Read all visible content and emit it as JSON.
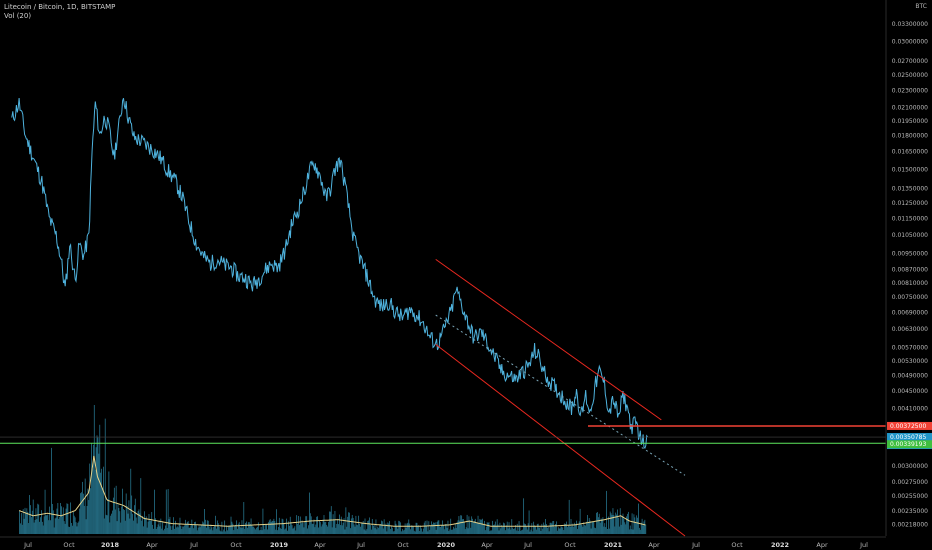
{
  "header": {
    "symbol_line": "Litecoin / Bitcoin, 1D, BITSTAMP",
    "indicator_line": "Vol (20)"
  },
  "currency_label": "BTC",
  "price_tags": {
    "resistance": "0.00372500",
    "last": "0.00350785",
    "countdown": "10:18:40",
    "support": "0.00339193"
  },
  "colors": {
    "price": "#4fb3de",
    "volume": "#2a7f9a",
    "volume_ma": "#e6d28a",
    "channel": "#e8281f",
    "resistance": "#f24236",
    "support": "#5ee85e",
    "last": "#2196c8",
    "midline": "#7aa6b8"
  },
  "chart_data": {
    "type": "line",
    "title": "Litecoin / Bitcoin, 1D, BITSTAMP",
    "ylabel": "BTC",
    "y_ticks": [
      "0.03600000",
      "0.03300000",
      "0.03000000",
      "0.02700000",
      "0.02500000",
      "0.02300000",
      "0.02100000",
      "0.01950000",
      "0.01800000",
      "0.01650000",
      "0.01500000",
      "0.01350000",
      "0.01250000",
      "0.01150000",
      "0.01050000",
      "0.00950000",
      "0.00870000",
      "0.00810000",
      "0.00750000",
      "0.00690000",
      "0.00630000",
      "0.00570000",
      "0.00530000",
      "0.00490000",
      "0.00450000",
      "0.00410000",
      "0.00300000",
      "0.00275000",
      "0.00255000",
      "0.00235000",
      "0.00218000"
    ],
    "x_ticks": [
      {
        "label": "Jul",
        "bold": false
      },
      {
        "label": "Oct",
        "bold": false
      },
      {
        "label": "2018",
        "bold": true
      },
      {
        "label": "Apr",
        "bold": false
      },
      {
        "label": "Jul",
        "bold": false
      },
      {
        "label": "Oct",
        "bold": false
      },
      {
        "label": "2019",
        "bold": true
      },
      {
        "label": "Apr",
        "bold": false
      },
      {
        "label": "Jul",
        "bold": false
      },
      {
        "label": "Oct",
        "bold": false
      },
      {
        "label": "2020",
        "bold": true
      },
      {
        "label": "Apr",
        "bold": false
      },
      {
        "label": "Jul",
        "bold": false
      },
      {
        "label": "Oct",
        "bold": false
      },
      {
        "label": "2021",
        "bold": true
      },
      {
        "label": "Apr",
        "bold": false
      },
      {
        "label": "Jul",
        "bold": false
      },
      {
        "label": "Oct",
        "bold": false
      },
      {
        "label": "2022",
        "bold": true
      },
      {
        "label": "Apr",
        "bold": false
      },
      {
        "label": "Jul",
        "bold": false
      }
    ],
    "series": [
      {
        "points": [
          [
            "2017-06-15",
            0.0196
          ],
          [
            "2017-07-01",
            0.0215
          ],
          [
            "2017-07-15",
            0.018
          ],
          [
            "2017-08-01",
            0.016
          ],
          [
            "2017-08-20",
            0.014
          ],
          [
            "2017-09-05",
            0.0115
          ],
          [
            "2017-09-20",
            0.0105
          ],
          [
            "2017-10-01",
            0.0092
          ],
          [
            "2017-10-10",
            0.0078
          ],
          [
            "2017-10-20",
            0.01
          ],
          [
            "2017-11-01",
            0.0082
          ],
          [
            "2017-11-10",
            0.01
          ],
          [
            "2017-11-20",
            0.0094
          ],
          [
            "2017-12-01",
            0.0105
          ],
          [
            "2017-12-08",
            0.0165
          ],
          [
            "2017-12-15",
            0.0215
          ],
          [
            "2017-12-25",
            0.018
          ],
          [
            "2018-01-05",
            0.02
          ],
          [
            "2018-01-15",
            0.0185
          ],
          [
            "2018-01-25",
            0.016
          ],
          [
            "2018-02-05",
            0.019
          ],
          [
            "2018-02-15",
            0.0225
          ],
          [
            "2018-02-25",
            0.02
          ],
          [
            "2018-03-10",
            0.0178
          ],
          [
            "2018-03-25",
            0.0175
          ],
          [
            "2018-04-10",
            0.017
          ],
          [
            "2018-04-25",
            0.0165
          ],
          [
            "2018-05-10",
            0.0158
          ],
          [
            "2018-05-25",
            0.0148
          ],
          [
            "2018-06-10",
            0.014
          ],
          [
            "2018-06-25",
            0.0128
          ],
          [
            "2018-07-10",
            0.0112
          ],
          [
            "2018-07-25",
            0.01
          ],
          [
            "2018-08-10",
            0.0093
          ],
          [
            "2018-08-25",
            0.009
          ],
          [
            "2018-09-10",
            0.0092
          ],
          [
            "2018-09-25",
            0.0089
          ],
          [
            "2018-10-10",
            0.0088
          ],
          [
            "2018-10-25",
            0.0084
          ],
          [
            "2018-11-10",
            0.0083
          ],
          [
            "2018-11-25",
            0.008
          ],
          [
            "2018-12-05",
            0.0082
          ],
          [
            "2018-12-20",
            0.0086
          ],
          [
            "2019-01-05",
            0.009
          ],
          [
            "2019-01-20",
            0.0088
          ],
          [
            "2019-02-05",
            0.0097
          ],
          [
            "2019-02-20",
            0.0112
          ],
          [
            "2019-03-05",
            0.012
          ],
          [
            "2019-03-20",
            0.0135
          ],
          [
            "2019-04-01",
            0.015
          ],
          [
            "2019-04-10",
            0.0155
          ],
          [
            "2019-04-25",
            0.0142
          ],
          [
            "2019-05-05",
            0.0128
          ],
          [
            "2019-05-15",
            0.0135
          ],
          [
            "2019-05-25",
            0.015
          ],
          [
            "2019-06-05",
            0.0158
          ],
          [
            "2019-06-15",
            0.014
          ],
          [
            "2019-06-25",
            0.012
          ],
          [
            "2019-07-05",
            0.0103
          ],
          [
            "2019-07-20",
            0.0092
          ],
          [
            "2019-08-05",
            0.0083
          ],
          [
            "2019-08-20",
            0.0074
          ],
          [
            "2019-09-05",
            0.0071
          ],
          [
            "2019-09-20",
            0.0073
          ],
          [
            "2019-10-05",
            0.0069
          ],
          [
            "2019-10-20",
            0.0067
          ],
          [
            "2019-11-05",
            0.007
          ],
          [
            "2019-11-20",
            0.0068
          ],
          [
            "2019-12-05",
            0.0065
          ],
          [
            "2019-12-20",
            0.006
          ],
          [
            "2020-01-05",
            0.0058
          ],
          [
            "2020-01-20",
            0.0063
          ],
          [
            "2020-02-05",
            0.007
          ],
          [
            "2020-02-15",
            0.0078
          ],
          [
            "2020-02-25",
            0.0073
          ],
          [
            "2020-03-10",
            0.0066
          ],
          [
            "2020-03-25",
            0.006
          ],
          [
            "2020-04-10",
            0.0062
          ],
          [
            "2020-04-25",
            0.0058
          ],
          [
            "2020-05-10",
            0.0054
          ],
          [
            "2020-05-25",
            0.005
          ],
          [
            "2020-06-10",
            0.0049
          ],
          [
            "2020-06-25",
            0.0048
          ],
          [
            "2020-07-10",
            0.005
          ],
          [
            "2020-07-25",
            0.0052
          ],
          [
            "2020-08-05",
            0.0056
          ],
          [
            "2020-08-15",
            0.0054
          ],
          [
            "2020-08-25",
            0.005
          ],
          [
            "2020-09-10",
            0.0047
          ],
          [
            "2020-09-25",
            0.0045
          ],
          [
            "2020-10-10",
            0.0043
          ],
          [
            "2020-10-25",
            0.0041
          ],
          [
            "2020-11-05",
            0.0045
          ],
          [
            "2020-11-15",
            0.0039
          ],
          [
            "2020-11-25",
            0.0044
          ],
          [
            "2020-12-05",
            0.004
          ],
          [
            "2020-12-15",
            0.0046
          ],
          [
            "2020-12-25",
            0.005
          ],
          [
            "2021-01-05",
            0.0047
          ],
          [
            "2021-01-15",
            0.004
          ],
          [
            "2021-01-25",
            0.0043
          ],
          [
            "2021-02-05",
            0.0039
          ],
          [
            "2021-02-15",
            0.0044
          ],
          [
            "2021-02-25",
            0.0041
          ],
          [
            "2021-03-05",
            0.0037
          ],
          [
            "2021-03-15",
            0.0038
          ],
          [
            "2021-03-25",
            0.0035
          ],
          [
            "2021-04-02",
            0.0034
          ],
          [
            "2021-04-10",
            0.00351
          ]
        ]
      }
    ],
    "volume": [
      [
        "2017-07-01",
        0.9
      ],
      [
        "2017-08-01",
        0.7
      ],
      [
        "2017-09-01",
        0.8
      ],
      [
        "2017-10-01",
        0.7
      ],
      [
        "2017-11-01",
        0.9
      ],
      [
        "2017-12-01",
        1.6
      ],
      [
        "2017-12-12",
        3.0
      ],
      [
        "2017-12-20",
        2.2
      ],
      [
        "2018-01-10",
        1.3
      ],
      [
        "2018-02-15",
        1.1
      ],
      [
        "2018-04-01",
        0.6
      ],
      [
        "2018-06-01",
        0.4
      ],
      [
        "2018-08-01",
        0.35
      ],
      [
        "2018-10-01",
        0.3
      ],
      [
        "2018-12-01",
        0.35
      ],
      [
        "2019-02-01",
        0.4
      ],
      [
        "2019-04-01",
        0.5
      ],
      [
        "2019-06-01",
        0.55
      ],
      [
        "2019-08-01",
        0.4
      ],
      [
        "2019-10-01",
        0.3
      ],
      [
        "2019-12-01",
        0.3
      ],
      [
        "2020-02-01",
        0.35
      ],
      [
        "2020-03-15",
        0.5
      ],
      [
        "2020-05-01",
        0.3
      ],
      [
        "2020-07-01",
        0.3
      ],
      [
        "2020-09-01",
        0.3
      ],
      [
        "2020-11-01",
        0.35
      ],
      [
        "2021-01-05",
        0.55
      ],
      [
        "2021-02-10",
        0.7
      ],
      [
        "2021-03-01",
        0.5
      ],
      [
        "2021-04-05",
        0.35
      ]
    ],
    "channel": {
      "upper": [
        [
          "2020-01-01",
          0.0092
        ],
        [
          "2021-05-10",
          0.00385
        ]
      ],
      "lower": [
        [
          "2020-01-01",
          0.0058
        ],
        [
          "2021-07-01",
          0.00205
        ]
      ],
      "midline": [
        [
          "2020-01-01",
          0.0068
        ],
        [
          "2021-07-01",
          0.00285
        ]
      ]
    },
    "levels": {
      "resistance": 0.003725,
      "last": 0.00350785,
      "support": 0.00339193
    }
  }
}
